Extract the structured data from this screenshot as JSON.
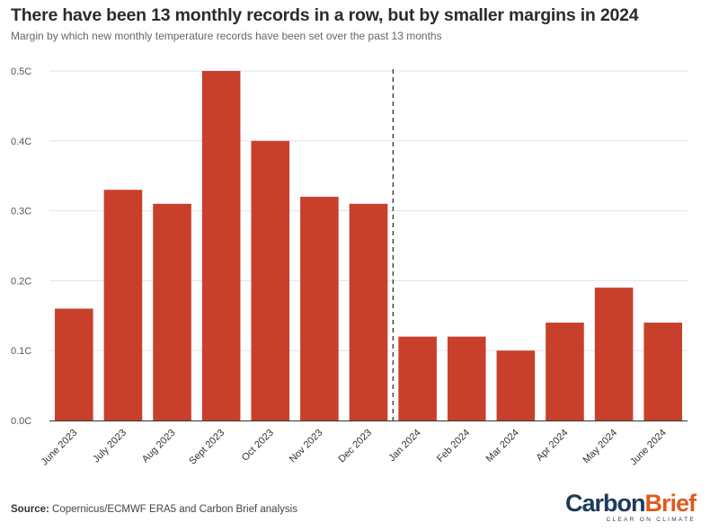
{
  "title": "There have been 13 monthly records in a row, but by smaller margins in 2024",
  "subtitle": "Margin by which new monthly temperature records have been set over the past 13 months",
  "source_label": "Source:",
  "source_text": "Copernicus/ECMWF ERA5 and Carbon Brief analysis",
  "logo": {
    "carbon": "Carbon",
    "brief": "Brief",
    "tagline": "CLEAR ON CLIMATE"
  },
  "colors": {
    "bar": "#c8402b",
    "grid": "#e3e3e3",
    "divider": "#222222",
    "axis": "#333333"
  },
  "chart_data": {
    "type": "bar",
    "categories": [
      "June 2023",
      "July 2023",
      "Aug 2023",
      "Sept 2023",
      "Oct 2023",
      "Nov 2023",
      "Dec 2023",
      "Jan 2024",
      "Feb 2024",
      "Mar 2024",
      "Apr 2024",
      "May 2024",
      "June 2024"
    ],
    "values": [
      0.16,
      0.33,
      0.31,
      0.5,
      0.4,
      0.32,
      0.31,
      0.12,
      0.12,
      0.1,
      0.14,
      0.19,
      0.14
    ],
    "ylim": [
      0,
      0.5
    ],
    "yticks": [
      0,
      0.1,
      0.2,
      0.3,
      0.4,
      0.5
    ],
    "ytick_labels": [
      "0.0C",
      "0.1C",
      "0.2C",
      "0.3C",
      "0.4C",
      "0.5C"
    ],
    "xlabel": "",
    "ylabel": "",
    "grid": true,
    "divider_between": [
      "Dec 2023",
      "Jan 2024"
    ]
  }
}
